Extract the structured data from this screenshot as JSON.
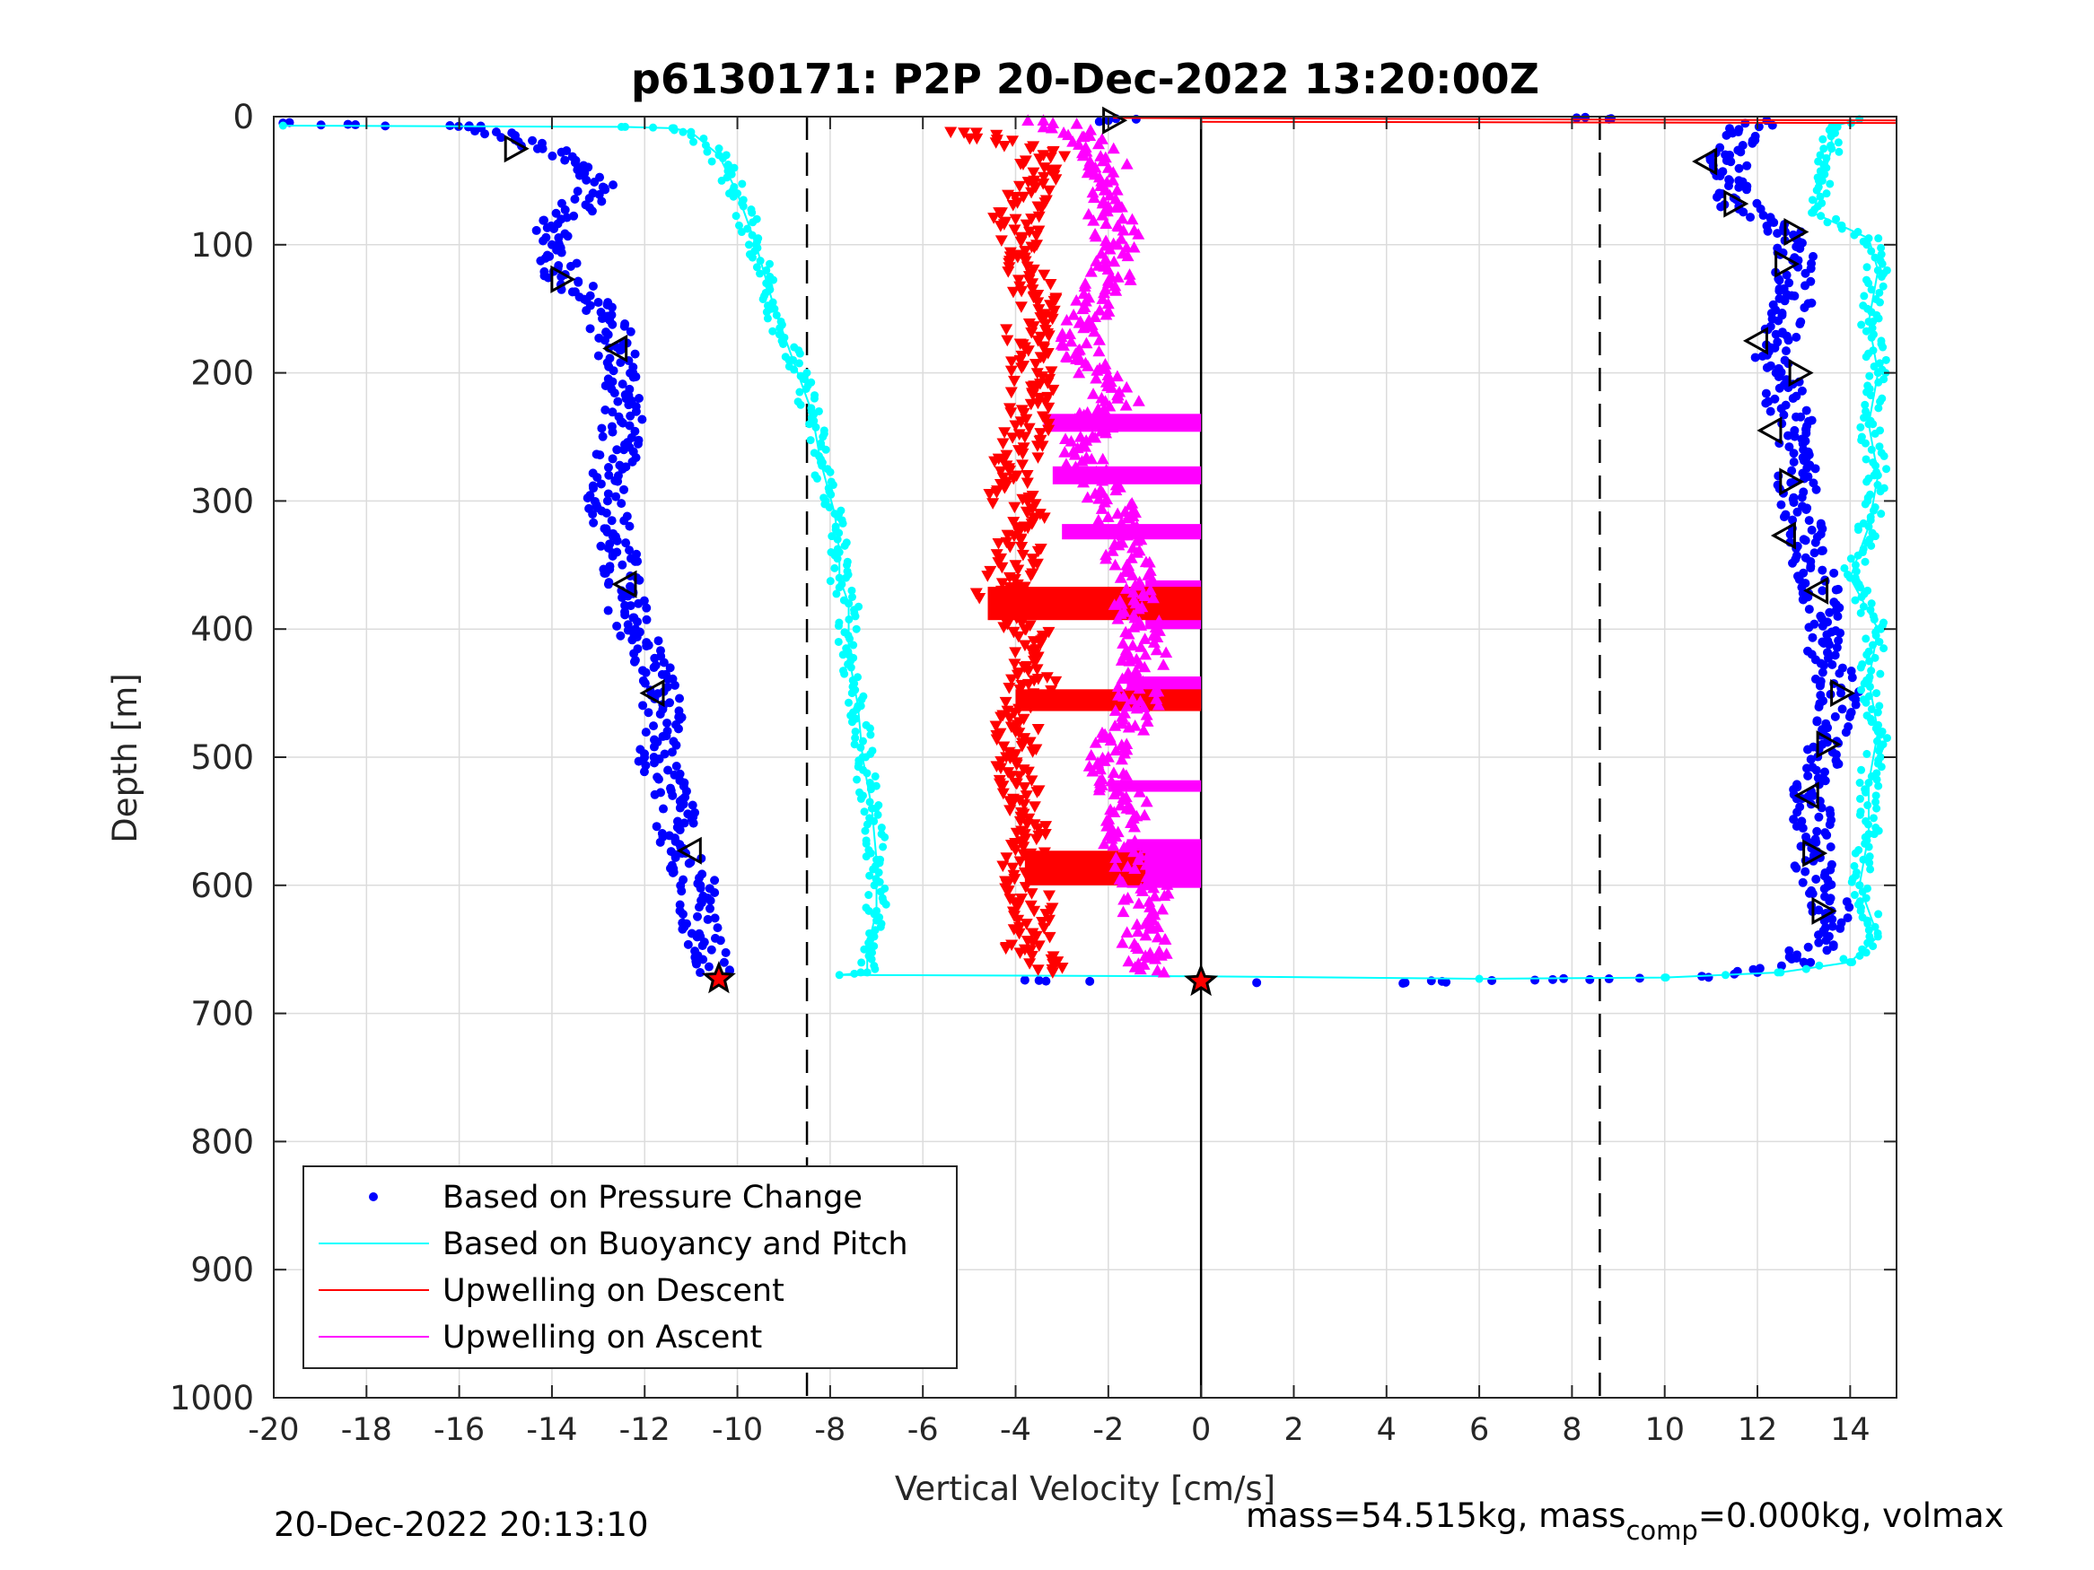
{
  "chart_data": {
    "type": "scatter",
    "title": "p6130171: P2P 20-Dec-2022 13:20:00Z",
    "xlabel": "Vertical Velocity [cm/s]",
    "ylabel": "Depth [m]",
    "xlim": [
      -20,
      15
    ],
    "ylim": [
      0,
      1000
    ],
    "y_reversed": true,
    "grid": true,
    "x_ticks": [
      -20,
      -18,
      -16,
      -14,
      -12,
      -10,
      -8,
      -6,
      -4,
      -2,
      0,
      2,
      4,
      6,
      8,
      10,
      12,
      14
    ],
    "y_ticks": [
      0,
      100,
      200,
      300,
      400,
      500,
      600,
      700,
      800,
      900,
      1000
    ],
    "reference_lines": {
      "dashed_x": [
        -8.5,
        8.6
      ],
      "solid_x": [
        0
      ]
    },
    "legend": {
      "placement": "bottom-left",
      "entries": [
        "Based on Pressure Change",
        "Based on Buoyancy and Pitch",
        "Upwelling on Descent",
        "Upwelling on Ascent"
      ]
    },
    "series": [
      {
        "name": "Based on Pressure Change",
        "style": "dots",
        "color": "#0000ff",
        "points": [
          [
            -19.8,
            5
          ],
          [
            -18.4,
            6
          ],
          [
            -16.2,
            7
          ],
          [
            -15.8,
            8
          ],
          [
            -15.2,
            12
          ],
          [
            -14.8,
            18
          ],
          [
            -14.2,
            25
          ],
          [
            -13.4,
            40
          ],
          [
            -12.9,
            55
          ],
          [
            -13.8,
            80
          ],
          [
            -14.0,
            100
          ],
          [
            -13.8,
            125
          ],
          [
            -13.0,
            145
          ],
          [
            -12.6,
            180
          ],
          [
            -12.4,
            220
          ],
          [
            -12.6,
            260
          ],
          [
            -12.8,
            300
          ],
          [
            -12.6,
            340
          ],
          [
            -12.5,
            370
          ],
          [
            -12.2,
            400
          ],
          [
            -11.8,
            430
          ],
          [
            -11.6,
            460
          ],
          [
            -11.8,
            500
          ],
          [
            -11.4,
            530
          ],
          [
            -11.2,
            575
          ],
          [
            -10.8,
            600
          ],
          [
            -10.8,
            640
          ],
          [
            -10.5,
            672
          ],
          [
            -3.8,
            674
          ],
          [
            -2.4,
            675
          ],
          [
            1.2,
            676
          ],
          [
            4.4,
            676
          ],
          [
            5.2,
            675
          ],
          [
            7.2,
            674
          ],
          [
            8.8,
            673
          ],
          [
            10.8,
            671
          ],
          [
            12.0,
            668
          ],
          [
            13.0,
            660
          ],
          [
            13.6,
            620
          ],
          [
            13.2,
            580
          ],
          [
            13.2,
            530
          ],
          [
            13.4,
            490
          ],
          [
            13.8,
            450
          ],
          [
            13.4,
            410
          ],
          [
            13.4,
            370
          ],
          [
            13.0,
            330
          ],
          [
            12.8,
            285
          ],
          [
            12.8,
            245
          ],
          [
            12.4,
            200
          ],
          [
            12.4,
            170
          ],
          [
            12.8,
            140
          ],
          [
            12.8,
            110
          ],
          [
            12.6,
            90
          ],
          [
            11.6,
            70
          ],
          [
            11.4,
            50
          ],
          [
            11.4,
            30
          ],
          [
            11.6,
            10
          ],
          [
            12.2,
            3
          ],
          [
            8.1,
            1
          ],
          [
            8.8,
            2
          ],
          [
            -2.0,
            3
          ],
          [
            -1.4,
            2
          ]
        ]
      },
      {
        "name": "Based on Buoyancy and Pitch",
        "style": "line",
        "color": "#00ffff",
        "points": [
          [
            -19.8,
            7
          ],
          [
            -12.5,
            8
          ],
          [
            -11.4,
            9
          ],
          [
            -11.0,
            12
          ],
          [
            -10.4,
            30
          ],
          [
            -10.0,
            60
          ],
          [
            -9.6,
            100
          ],
          [
            -9.2,
            150
          ],
          [
            -8.8,
            190
          ],
          [
            -8.4,
            230
          ],
          [
            -8.2,
            270
          ],
          [
            -7.9,
            310
          ],
          [
            -7.8,
            340
          ],
          [
            -7.8,
            360
          ],
          [
            -7.6,
            380
          ],
          [
            -7.6,
            420
          ],
          [
            -7.4,
            460
          ],
          [
            -7.3,
            500
          ],
          [
            -7.1,
            540
          ],
          [
            -7.0,
            580
          ],
          [
            -7.0,
            620
          ],
          [
            -7.2,
            650
          ],
          [
            -7.2,
            668
          ],
          [
            -7.8,
            670
          ],
          [
            0.0,
            671
          ],
          [
            6.0,
            673
          ],
          [
            10.0,
            672
          ],
          [
            12.5,
            668
          ],
          [
            14.0,
            660
          ],
          [
            14.6,
            640
          ],
          [
            14.2,
            600
          ],
          [
            14.4,
            560
          ],
          [
            14.4,
            520
          ],
          [
            14.6,
            480
          ],
          [
            14.4,
            440
          ],
          [
            14.6,
            400
          ],
          [
            14.0,
            360
          ],
          [
            14.4,
            320
          ],
          [
            14.6,
            280
          ],
          [
            14.4,
            240
          ],
          [
            14.6,
            200
          ],
          [
            14.4,
            160
          ],
          [
            14.6,
            120
          ],
          [
            14.4,
            95
          ],
          [
            13.8,
            85
          ],
          [
            13.2,
            75
          ],
          [
            13.4,
            50
          ],
          [
            13.6,
            25
          ],
          [
            13.6,
            8
          ],
          [
            14.2,
            2
          ]
        ]
      },
      {
        "name": "Upwelling on Descent",
        "style": "triangle-down",
        "color": "#ff0000",
        "points": [
          [
            -5.4,
            12
          ],
          [
            -4.4,
            18
          ],
          [
            -3.4,
            30
          ],
          [
            -3.6,
            50
          ],
          [
            -4.0,
            80
          ],
          [
            -3.8,
            110
          ],
          [
            -3.6,
            140
          ],
          [
            -3.8,
            180
          ],
          [
            -3.6,
            210
          ],
          [
            -3.8,
            250
          ],
          [
            -4.2,
            285
          ],
          [
            -3.8,
            320
          ],
          [
            -4.0,
            350
          ],
          [
            -4.4,
            375
          ],
          [
            -3.8,
            400
          ],
          [
            -3.6,
            440
          ],
          [
            -4.0,
            480
          ],
          [
            -4.0,
            520
          ],
          [
            -3.8,
            560
          ],
          [
            -3.8,
            590
          ],
          [
            -3.6,
            620
          ],
          [
            -3.8,
            650
          ],
          [
            -3.2,
            668
          ]
        ]
      },
      {
        "name": "Upwelling on Ascent",
        "style": "triangle-up",
        "color": "#ff00ff",
        "points": [
          [
            -3.4,
            3
          ],
          [
            -2.4,
            15
          ],
          [
            -2.0,
            40
          ],
          [
            -2.0,
            70
          ],
          [
            -1.8,
            100
          ],
          [
            -2.0,
            130
          ],
          [
            -2.6,
            160
          ],
          [
            -2.6,
            190
          ],
          [
            -1.8,
            220
          ],
          [
            -2.6,
            250
          ],
          [
            -2.4,
            280
          ],
          [
            -1.8,
            310
          ],
          [
            -1.6,
            350
          ],
          [
            -1.4,
            380
          ],
          [
            -1.2,
            420
          ],
          [
            -1.4,
            460
          ],
          [
            -2.0,
            500
          ],
          [
            -1.6,
            540
          ],
          [
            -1.6,
            570
          ],
          [
            -1.2,
            600
          ],
          [
            -1.2,
            630
          ],
          [
            -1.2,
            655
          ],
          [
            -0.8,
            668
          ]
        ]
      }
    ],
    "bands": [
      {
        "series": "Upwelling on Ascent",
        "x0": -3.4,
        "x1": 0,
        "y0": 232,
        "y1": 246
      },
      {
        "series": "Upwelling on Ascent",
        "x0": -3.2,
        "x1": 0,
        "y0": 273,
        "y1": 287
      },
      {
        "series": "Upwelling on Ascent",
        "x0": -3.0,
        "x1": 0,
        "y0": 318,
        "y1": 330
      },
      {
        "series": "Upwelling on Ascent",
        "x0": -1.2,
        "x1": 0,
        "y0": 362,
        "y1": 400
      },
      {
        "series": "Upwelling on Ascent",
        "x0": -1.6,
        "x1": 0,
        "y0": 437,
        "y1": 462
      },
      {
        "series": "Upwelling on Ascent",
        "x0": -2.0,
        "x1": 0,
        "y0": 518,
        "y1": 527
      },
      {
        "series": "Upwelling on Ascent",
        "x0": -1.6,
        "x1": 0,
        "y0": 564,
        "y1": 602
      },
      {
        "series": "Upwelling on Descent",
        "x0": -4.6,
        "x1": 0,
        "y0": 367,
        "y1": 393
      },
      {
        "series": "Upwelling on Descent",
        "x0": -4.0,
        "x1": 0,
        "y0": 447,
        "y1": 464
      },
      {
        "series": "Upwelling on Descent",
        "x0": -3.8,
        "x1": -1.2,
        "y0": 573,
        "y1": 600
      }
    ],
    "markers": {
      "right_triangle": [
        [
          -1.9,
          3
        ],
        [
          -14.8,
          25
        ],
        [
          -13.8,
          127
        ],
        [
          11.5,
          68
        ],
        [
          12.6,
          115
        ],
        [
          12.9,
          200
        ],
        [
          12.7,
          285
        ],
        [
          13.8,
          450
        ],
        [
          13.5,
          490
        ],
        [
          13.2,
          575
        ],
        [
          13.4,
          620
        ],
        [
          12.8,
          90
        ]
      ],
      "left_triangle": [
        [
          -12.6,
          181
        ],
        [
          -12.4,
          365
        ],
        [
          -11.8,
          450
        ],
        [
          -11.0,
          573
        ],
        [
          10.9,
          35
        ],
        [
          12.0,
          175
        ],
        [
          12.3,
          245
        ],
        [
          12.6,
          327
        ],
        [
          13.3,
          370
        ],
        [
          13.1,
          530
        ]
      ],
      "endpoint_star": [
        [
          -10.4,
          673
        ],
        [
          0.0,
          675
        ]
      ]
    }
  },
  "footer": {
    "timestamp": "20-Dec-2022 20:13:10",
    "mass_prefix": "mass=54.515kg, mass",
    "mass_sub": "comp",
    "mass_suffix": "=0.000kg, volmax"
  }
}
